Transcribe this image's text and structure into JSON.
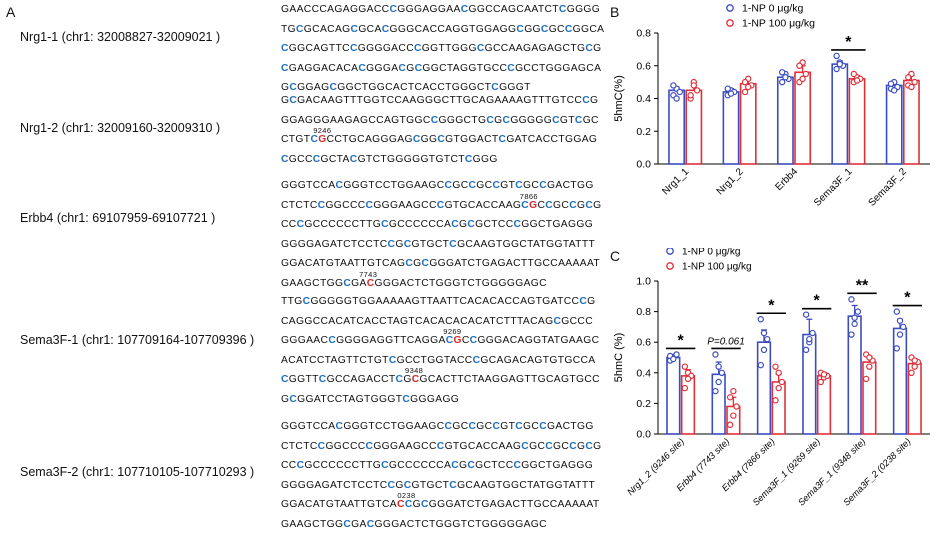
{
  "panelA": {
    "letter": "A",
    "regions": [
      {
        "label": "Nrg1-1  (chr1: 32008827-32009021 )",
        "lines": [
          "GAACCCAGAGGACCCGGGAGGAACGGCCAGCAATCTCGGGG",
          "TGCGCACAGCGCACGGGCACCAGGTGGAGGCGGCGCCGGCA",
          "CGGCAGTTCCGGGGACCCGGTTGGGCGCCAAGAGAGCTGCG",
          "CGAGGACACACGGGACGCGGCTAGGTGCCCGCCTGGGAGCA",
          "GCGGAGCGGCTGGCACTCACCTGGGCTCGGGT"
        ],
        "site": ""
      },
      {
        "label": "Nrg1-2  (chr1: 32009160-32009310 )",
        "lines": [
          "GCGACAAGTTTGGTCCAAGGGCTTGCAGAAAAGTTTGTCCCG",
          "GGAGGGAAGAGCCAGTGGCCGGGCTGCGCGGGGGCGTCGC",
          "CTGTCGCCTGCAGGGAGCGGCGTGGACTCGATCACCTGGAG",
          "CGCCCGCTACGTCTGGGGGTGTCTCGGG"
        ],
        "site": "9246"
      },
      {
        "label": "Erbb4 (chr1: 69107959-69107721 )",
        "lines": [
          "GGGTCCACGGGTCCTGGAAGCCGCCGCCGTCGCCGACTGG",
          "CTCTCCGGCCCCGGGAAGCCCGTGCACCAAGCGCCGCCGCG",
          "CCCGCCCCCCTTGCGCCCCCCACGCGCTCCCGGCTGAGGG",
          "GGGGAGATCTCCTCCGCGTGCTCGCAAGTGGCTATGGTATTT",
          "GGACATGTAATTGTCAGCGCGGGATCTGAGACTTGCCAAAAAT",
          "GAAGCTGGCGACGGGACTCTGGGTCTGGGGGAGC"
        ],
        "site": "7866",
        "site2": "7743"
      },
      {
        "label": "Sema3F-1 (chr1: 107709164-107709396 )",
        "lines": [
          "TTGCGGGGGTGGAAAAAGTTAATTCACACACCAGTGATCCCG",
          "CAGGCCACATCACCTAGTCACACACACATCTTTACAGCGCCC",
          "GGGAACCGGGGAGGTTCAGGACGCCGGGACAGGTATGAAGC",
          "ACATCCTAGTTCTGTCGCCTGGTACCCGCAGACAGTGTGCCA",
          "CGGTTCGCCAGACCTCGCGCACTTCTAAGGAGTTGCAGTGCC",
          "GCGGATCCTAGTGGGTCGGGAGG"
        ],
        "site": "9269",
        "site2": "9348"
      },
      {
        "label": "Sema3F-2 (chr1: 107710105-107710293 )",
        "lines": [
          "GGGTCCACGGGTCCTGGAAGCCGCCGCCGTCGCCGACTGG",
          "CTCTCCGGCCCCGGGAAGCCCGTGCACCAAGCGCCGCCGCG",
          "CCCGCCCCCCTTGCGCCCCCCACGCGCTCCCGGCTGAGGG",
          "GGGGAGATCTCCTCCGCGTGCTCGCAAGTGGCTATGGTATTT",
          "GGACATGTAATTGTCACCGCGGGATCTGAGACTTGCCAAAAAT",
          "GAAGCTGGCGACGGGACTCTGGGTCTGGGGGAGC"
        ],
        "site": "0238"
      }
    ]
  },
  "chart_data": [
    {
      "panel": "B",
      "type": "bar",
      "ylabel": "5hmC(%)",
      "ylim": [
        0.0,
        0.8
      ],
      "yticks": [
        "0.0",
        "0.2",
        "0.4",
        "0.6",
        "0.8"
      ],
      "categories": [
        "Nrg1_1",
        "Nrg1_2",
        "Erbb4",
        "Sema3F_1",
        "Sema3F_2"
      ],
      "series": [
        {
          "name": "1-NP 0 μg/kg",
          "color": "#3b4cc0",
          "values": [
            0.45,
            0.44,
            0.53,
            0.61,
            0.48
          ],
          "errors": [
            0.02,
            0.02,
            0.02,
            0.02,
            0.02
          ],
          "points": [
            [
              0.42,
              0.46,
              0.44,
              0.48,
              0.4
            ],
            [
              0.42,
              0.45,
              0.44,
              0.46,
              0.43
            ],
            [
              0.5,
              0.55,
              0.52,
              0.56,
              0.53
            ],
            [
              0.58,
              0.62,
              0.6,
              0.66,
              0.61
            ],
            [
              0.46,
              0.5,
              0.47,
              0.49,
              0.45
            ]
          ]
        },
        {
          "name": "1-NP 100 μg/kg",
          "color": "#e0303a",
          "values": [
            0.45,
            0.49,
            0.56,
            0.52,
            0.51
          ],
          "errors": [
            0.03,
            0.03,
            0.04,
            0.02,
            0.03
          ],
          "points": [
            [
              0.4,
              0.5,
              0.45,
              0.42,
              0.48
            ],
            [
              0.44,
              0.52,
              0.48,
              0.5,
              0.47
            ],
            [
              0.5,
              0.62,
              0.55,
              0.6,
              0.52
            ],
            [
              0.5,
              0.53,
              0.52,
              0.55,
              0.51
            ],
            [
              0.48,
              0.55,
              0.5,
              0.53,
              0.47
            ]
          ]
        }
      ],
      "significance": [
        {
          "category_index": 3,
          "label": "*"
        }
      ]
    },
    {
      "panel": "C",
      "type": "bar",
      "ylabel": "5hmC (%)",
      "ylim": [
        0.0,
        1.0
      ],
      "yticks": [
        "0.0",
        "0.2",
        "0.4",
        "0.6",
        "0.8",
        "1.0"
      ],
      "categories": [
        "Nrg1_2 (9246 site)",
        "Erbb4 (7743 site)",
        "Erbb4 (7866 site)",
        "Sema3F_1 (9269 site)",
        "Sema3F_1 (9348 site)",
        "Sema3F_2 (0238 site)"
      ],
      "series": [
        {
          "name": "1-NP 0 μg/kg",
          "color": "#3b4cc0",
          "values": [
            0.5,
            0.39,
            0.6,
            0.65,
            0.77,
            0.69
          ],
          "errors": [
            0.02,
            0.08,
            0.08,
            0.1,
            0.07,
            0.06
          ],
          "points": [
            [
              0.48,
              0.5,
              0.52,
              0.51,
              0.49
            ],
            [
              0.28,
              0.34,
              0.4,
              0.52,
              0.44
            ],
            [
              0.45,
              0.55,
              0.62,
              0.75,
              0.66
            ],
            [
              0.55,
              0.6,
              0.66,
              0.78,
              0.62
            ],
            [
              0.65,
              0.72,
              0.8,
              0.88,
              0.76
            ],
            [
              0.56,
              0.65,
              0.7,
              0.8,
              0.74
            ]
          ]
        },
        {
          "name": "1-NP 100 μg/kg",
          "color": "#e0303a",
          "values": [
            0.38,
            0.18,
            0.34,
            0.38,
            0.47,
            0.46
          ],
          "errors": [
            0.04,
            0.06,
            0.05,
            0.02,
            0.04,
            0.03
          ],
          "points": [
            [
              0.3,
              0.4,
              0.38,
              0.44,
              0.36
            ],
            [
              0.06,
              0.12,
              0.18,
              0.24,
              0.28
            ],
            [
              0.22,
              0.3,
              0.34,
              0.44,
              0.4
            ],
            [
              0.34,
              0.37,
              0.38,
              0.4,
              0.39
            ],
            [
              0.36,
              0.44,
              0.48,
              0.52,
              0.5
            ],
            [
              0.4,
              0.44,
              0.47,
              0.5,
              0.48
            ]
          ]
        }
      ],
      "significance": [
        {
          "category_index": 0,
          "label": "*"
        },
        {
          "category_index": 1,
          "label": "P=0.061"
        },
        {
          "category_index": 2,
          "label": "*"
        },
        {
          "category_index": 3,
          "label": "*"
        },
        {
          "category_index": 4,
          "label": "**"
        },
        {
          "category_index": 5,
          "label": "*"
        }
      ]
    }
  ]
}
